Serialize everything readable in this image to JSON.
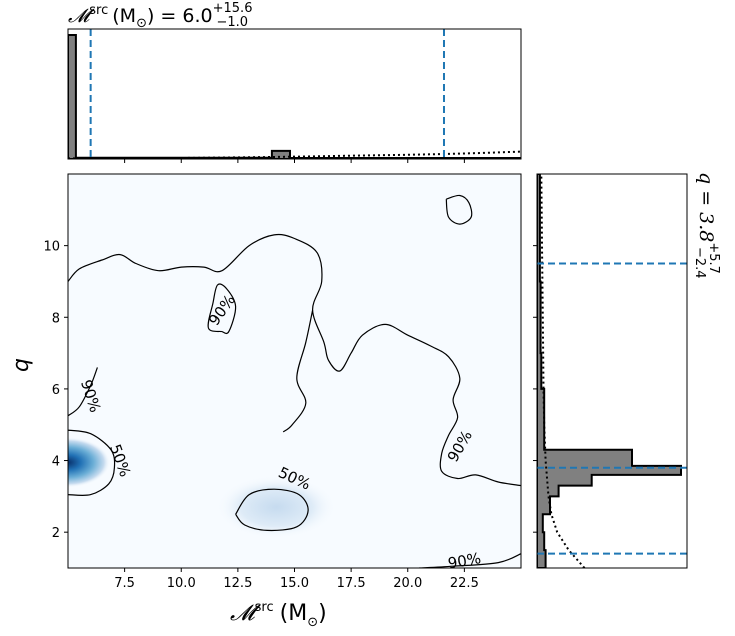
{
  "chart_data": {
    "type": "corner",
    "colors": {
      "main": "#08306b",
      "credible": "#1f77b4",
      "hist_fill": "#808080",
      "contour": "#000000"
    },
    "parameters": [
      {
        "key": "mchirp",
        "label": "𝓜",
        "label_sup": "src",
        "unit": "(M",
        "unit_sub": "⊙",
        "unit_close": ")",
        "xlim": [
          5.0,
          25.0
        ],
        "ticks": [
          7.5,
          10.0,
          12.5,
          15.0,
          17.5,
          20.0,
          22.5
        ],
        "tick_labels": [
          "7.5",
          "10.0",
          "12.5",
          "15.0",
          "17.5",
          "20.0",
          "22.5"
        ],
        "median": 6.0,
        "upper": 15.6,
        "lower": 1.0,
        "summary_prefix": "(M",
        "summary_suffix": ") = 6.0",
        "summary_upper": "+15.6",
        "summary_lower": "−1.0",
        "credible_lines": [
          6.0,
          21.6
        ],
        "histogram": [
          {
            "x0": 5.0,
            "x1": 5.35,
            "density": 1.0
          },
          {
            "x0": 5.35,
            "x1": 14.0,
            "density": 0.01
          },
          {
            "x0": 14.0,
            "x1": 14.8,
            "density": 0.065
          },
          {
            "x0": 14.8,
            "x1": 25.0,
            "density": 0.008
          }
        ],
        "prior": [
          [
            5.0,
            0.005
          ],
          [
            8.0,
            0.006
          ],
          [
            10.0,
            0.008
          ],
          [
            12.0,
            0.012
          ],
          [
            14.0,
            0.016
          ],
          [
            16.0,
            0.022
          ],
          [
            18.0,
            0.028
          ],
          [
            20.0,
            0.034
          ],
          [
            22.0,
            0.042
          ],
          [
            23.5,
            0.05
          ],
          [
            25.0,
            0.06
          ]
        ]
      },
      {
        "key": "q",
        "label": "q",
        "summary": "q = 3.8",
        "summary_upper": "+5.7",
        "summary_lower": "−2.4",
        "ylim": [
          1.0,
          12.0
        ],
        "ticks": [
          2,
          4,
          6,
          8,
          10
        ],
        "tick_labels": [
          "2",
          "4",
          "6",
          "8",
          "10"
        ],
        "median": 3.8,
        "upper": 5.7,
        "lower": 2.4,
        "credible_lines": [
          1.4,
          9.5,
          3.8
        ],
        "histogram": [
          {
            "y0": 1.0,
            "y1": 1.5,
            "density": 0.06
          },
          {
            "y0": 1.5,
            "y1": 2.0,
            "density": 0.05
          },
          {
            "y0": 2.0,
            "y1": 2.5,
            "density": 0.04
          },
          {
            "y0": 2.5,
            "y1": 3.0,
            "density": 0.09
          },
          {
            "y0": 3.0,
            "y1": 3.3,
            "density": 0.15
          },
          {
            "y0": 3.3,
            "y1": 3.6,
            "density": 0.38
          },
          {
            "y0": 3.6,
            "y1": 3.85,
            "density": 1.0
          },
          {
            "y0": 3.85,
            "y1": 4.3,
            "density": 0.66
          },
          {
            "y0": 4.3,
            "y1": 5.0,
            "density": 0.05
          },
          {
            "y0": 5.0,
            "y1": 6.0,
            "density": 0.05
          },
          {
            "y0": 6.0,
            "y1": 7.0,
            "density": 0.03
          },
          {
            "y0": 7.0,
            "y1": 9.0,
            "density": 0.025
          },
          {
            "y0": 9.0,
            "y1": 12.0,
            "density": 0.02
          }
        ],
        "prior": [
          [
            1.0,
            0.33
          ],
          [
            1.5,
            0.22
          ],
          [
            2.0,
            0.14
          ],
          [
            2.5,
            0.1
          ],
          [
            3.0,
            0.08
          ],
          [
            4.0,
            0.06
          ],
          [
            5.0,
            0.05
          ],
          [
            6.0,
            0.045
          ],
          [
            8.0,
            0.04
          ],
          [
            10.0,
            0.035
          ],
          [
            12.0,
            0.03
          ]
        ]
      }
    ],
    "contours": [
      {
        "label": "50%",
        "label_positions": [
          [
            7.3,
            4.0
          ],
          [
            15.0,
            3.5
          ]
        ]
      },
      {
        "label": "90%",
        "label_positions": [
          [
            6.0,
            5.8
          ],
          [
            11.8,
            8.2
          ],
          [
            22.3,
            4.4
          ],
          [
            22.5,
            1.2
          ]
        ]
      }
    ],
    "contour_50": [
      [
        [
          5.0,
          4.85
        ],
        [
          6.0,
          4.75
        ],
        [
          6.9,
          4.3
        ],
        [
          7.05,
          3.8
        ],
        [
          6.8,
          3.35
        ],
        [
          6.0,
          3.05
        ],
        [
          5.0,
          3.05
        ]
      ],
      [
        [
          12.4,
          2.5
        ],
        [
          12.8,
          2.2
        ],
        [
          13.8,
          2.05
        ],
        [
          15.1,
          2.15
        ],
        [
          15.6,
          2.6
        ],
        [
          15.2,
          3.05
        ],
        [
          14.1,
          3.2
        ],
        [
          13.0,
          3.05
        ],
        [
          12.4,
          2.5
        ]
      ]
    ],
    "contour_90": [
      [
        [
          5.0,
          9.0
        ],
        [
          5.5,
          9.35
        ],
        [
          6.5,
          9.6
        ],
        [
          7.3,
          9.75
        ],
        [
          8.0,
          9.5
        ],
        [
          9.0,
          9.3
        ],
        [
          10.0,
          9.4
        ],
        [
          11.0,
          9.4
        ],
        [
          11.8,
          9.3
        ],
        [
          13.0,
          10.0
        ],
        [
          14.1,
          10.3
        ],
        [
          15.0,
          10.2
        ],
        [
          16.0,
          9.8
        ],
        [
          16.2,
          9.0
        ],
        [
          15.8,
          8.2
        ],
        [
          16.3,
          7.3
        ],
        [
          16.5,
          6.8
        ],
        [
          17.0,
          6.5
        ],
        [
          17.5,
          7.0
        ],
        [
          18.0,
          7.5
        ],
        [
          19.0,
          7.8
        ],
        [
          20.0,
          7.5
        ],
        [
          21.0,
          7.2
        ],
        [
          21.8,
          6.9
        ],
        [
          22.3,
          6.3
        ],
        [
          22.0,
          5.7
        ],
        [
          22.2,
          5.2
        ],
        [
          21.8,
          4.7
        ],
        [
          21.5,
          4.2
        ],
        [
          21.5,
          3.7
        ],
        [
          22.2,
          3.5
        ],
        [
          23.0,
          3.6
        ],
        [
          24.0,
          3.4
        ],
        [
          25.0,
          3.3
        ]
      ],
      [
        [
          15.8,
          8.2
        ],
        [
          15.5,
          7.3
        ],
        [
          15.1,
          6.3
        ],
        [
          15.5,
          5.6
        ],
        [
          14.9,
          5.0
        ],
        [
          14.5,
          4.8
        ]
      ],
      [
        [
          11.8,
          7.6
        ],
        [
          11.2,
          7.7
        ],
        [
          11.4,
          8.4
        ],
        [
          11.6,
          8.9
        ],
        [
          12.0,
          8.8
        ],
        [
          12.4,
          8.3
        ],
        [
          12.1,
          7.6
        ],
        [
          11.8,
          7.6
        ]
      ],
      [
        [
          21.7,
          11.3
        ],
        [
          22.3,
          11.4
        ],
        [
          22.7,
          11.2
        ],
        [
          22.8,
          10.8
        ],
        [
          22.3,
          10.6
        ],
        [
          21.8,
          10.8
        ],
        [
          21.7,
          11.3
        ]
      ],
      [
        [
          5.0,
          5.25
        ],
        [
          5.5,
          5.5
        ],
        [
          6.0,
          6.1
        ],
        [
          6.3,
          6.6
        ]
      ],
      [
        [
          20.5,
          1.0
        ],
        [
          22.0,
          1.05
        ],
        [
          24.0,
          1.15
        ],
        [
          25.0,
          1.4
        ]
      ]
    ],
    "density_peaks": [
      {
        "x": 5.0,
        "y": 3.95,
        "weight": 1.0,
        "sx": 0.85,
        "sy": 0.32
      },
      {
        "x": 14.2,
        "y": 2.7,
        "weight": 0.13,
        "sx": 1.2,
        "sy": 0.4
      }
    ]
  }
}
